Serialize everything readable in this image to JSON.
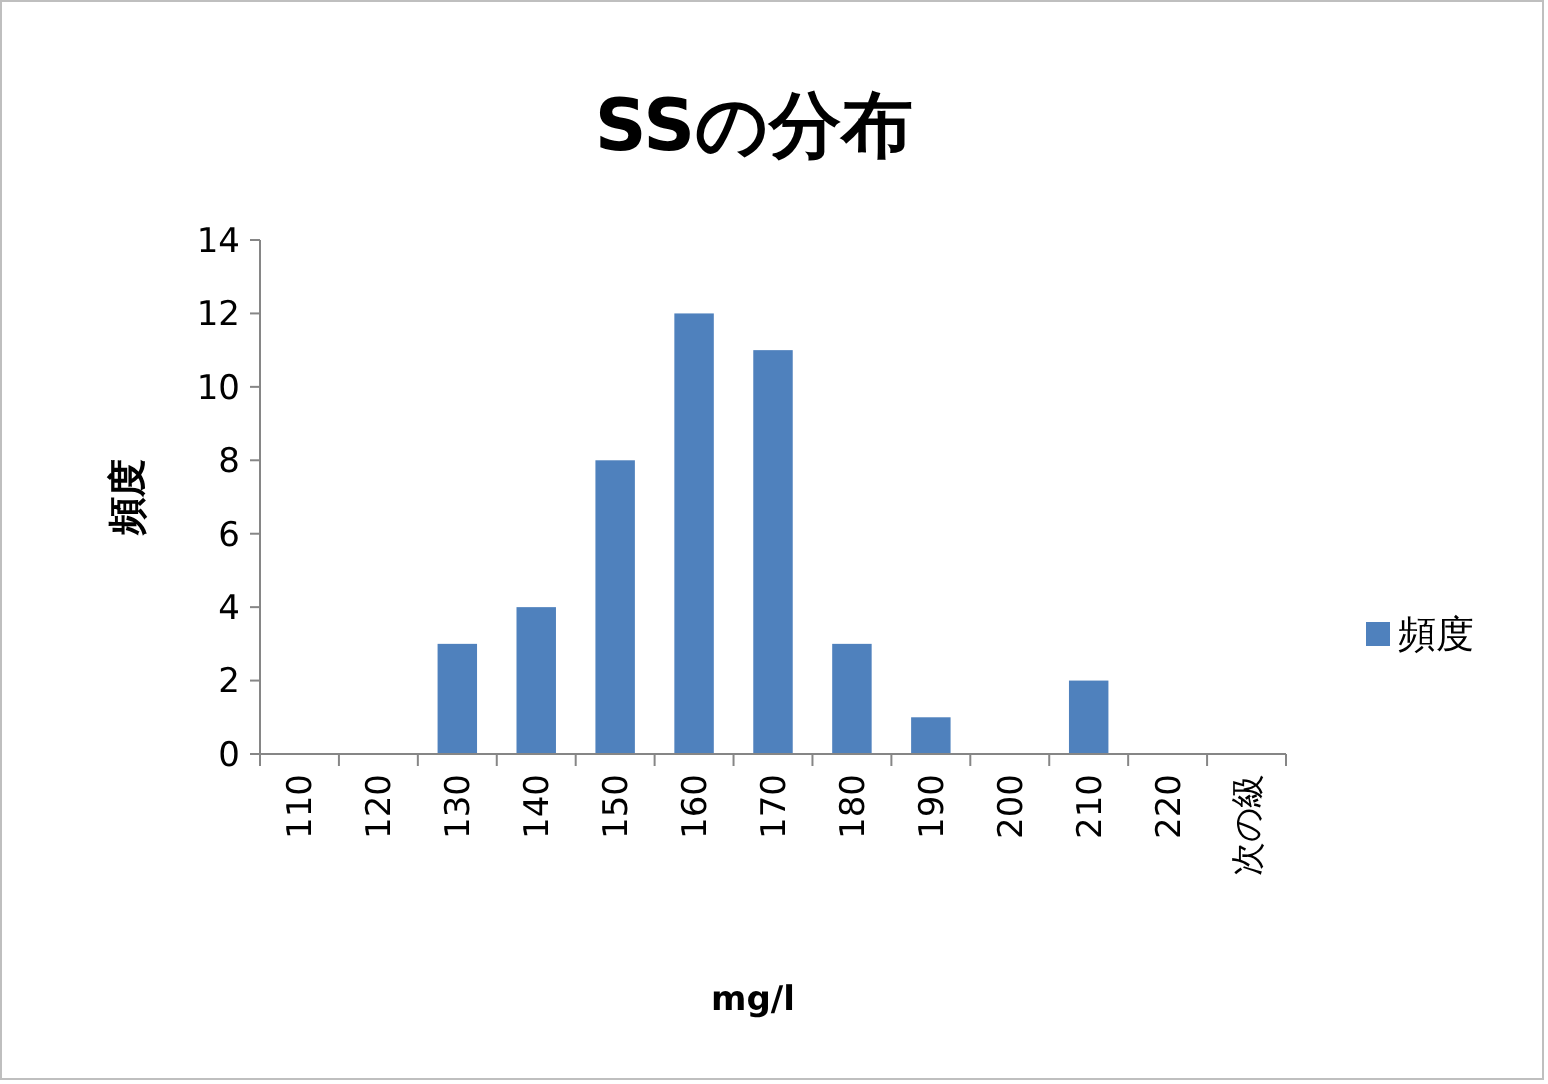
{
  "chart_data": {
    "type": "bar",
    "title": "SSの分布",
    "xlabel": "mg/l",
    "ylabel": "頻度",
    "categories": [
      "110",
      "120",
      "130",
      "140",
      "150",
      "160",
      "170",
      "180",
      "190",
      "200",
      "210",
      "220",
      "次の級"
    ],
    "series": [
      {
        "name": "頻度",
        "color": "#4f81bd",
        "values": [
          0,
          0,
          3,
          4,
          8,
          12,
          11,
          3,
          1,
          0,
          2,
          0,
          0
        ]
      }
    ],
    "ylim": [
      0,
      14
    ],
    "yticks": [
      0,
      2,
      4,
      6,
      8,
      10,
      12,
      14
    ],
    "grid": false,
    "legend": "right"
  }
}
